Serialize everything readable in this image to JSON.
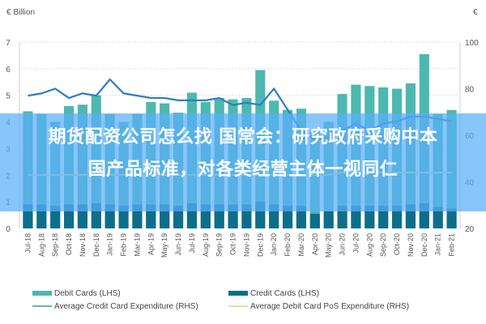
{
  "header": {
    "left_unit": "€ Billion",
    "right_unit": "€"
  },
  "overlay": {
    "title_line1": "期货配资公司怎么找 国常会：研究政府采购中本",
    "title_line2": "国产品标准，对各类经营主体一视同仁"
  },
  "legend": {
    "debit": "Debit Cards (LHS)",
    "credit": "Credit Cards (LHS)",
    "avg_credit": "Average Credit Card Expenditure (RHS)",
    "avg_debit": "Average Debit Card PoS Expenditure (RHS)"
  },
  "colors": {
    "debit": "#4db8b0",
    "credit": "#0d6e8c",
    "avg_credit": "#2a7fc4",
    "avg_debit": "#d6e6a8",
    "grid": "#dddddd",
    "axis_text": "#555555",
    "overlay": "#5aaffa"
  },
  "chart_data": {
    "type": "bar",
    "title": "",
    "xlabel": "",
    "ylabel": "€ Billion",
    "ylabel_right": "€",
    "ylim": [
      0,
      7
    ],
    "ylim_right": [
      20,
      100
    ],
    "yticks": [
      0,
      1,
      2,
      3,
      4,
      5,
      6,
      7
    ],
    "yticks_right": [
      20,
      40,
      60,
      80,
      100
    ],
    "grid": true,
    "legend_position": "bottom",
    "categories": [
      "Jul-18",
      "Aug-18",
      "Sep-18",
      "Oct-18",
      "Nov-18",
      "Dec-18",
      "Jan-19",
      "Feb-19",
      "Mar-19",
      "Apr-19",
      "May-19",
      "Jun-19",
      "Jul-19",
      "Aug-19",
      "Sep-19",
      "Oct-19",
      "Nov-19",
      "Dec-19",
      "Jan-20",
      "Feb-20",
      "Mar-20",
      "Apr-20",
      "May-20",
      "Jun-20",
      "Jul-20",
      "Aug-20",
      "Sep-20",
      "Oct-20",
      "Nov-20",
      "Dec-20",
      "Jan-21",
      "Feb-21"
    ],
    "series": [
      {
        "name": "Debit Cards (LHS)",
        "type": "bar",
        "axis": "left",
        "values": [
          4.4,
          4.3,
          4.0,
          4.6,
          4.65,
          5.0,
          4.3,
          4.0,
          4.3,
          4.75,
          4.7,
          4.35,
          5.1,
          4.75,
          4.9,
          4.85,
          4.9,
          5.95,
          4.8,
          4.45,
          4.5,
          3.7,
          4.0,
          5.05,
          5.4,
          5.35,
          5.3,
          5.25,
          5.45,
          6.55,
          4.3,
          4.45
        ]
      },
      {
        "name": "Credit Cards (LHS)",
        "type": "bar",
        "axis": "left",
        "values": [
          0.9,
          0.9,
          0.85,
          0.9,
          0.9,
          0.95,
          0.9,
          0.85,
          0.9,
          0.9,
          0.9,
          0.85,
          0.95,
          0.9,
          0.9,
          0.9,
          0.9,
          1.0,
          0.9,
          0.85,
          0.85,
          0.55,
          0.65,
          0.85,
          0.85,
          0.85,
          0.85,
          0.85,
          0.9,
          0.95,
          0.8,
          0.75
        ]
      },
      {
        "name": "Average Credit Card Expenditure (RHS)",
        "type": "line",
        "axis": "right",
        "values": [
          77,
          78,
          80,
          76,
          78,
          77,
          84,
          78,
          77,
          76,
          76,
          75,
          75,
          75,
          76,
          73,
          74,
          73,
          80,
          71,
          62,
          58,
          59,
          62,
          65,
          62,
          65,
          66,
          68,
          68,
          67,
          66
        ]
      },
      {
        "name": "Average Debit Card PoS Expenditure (RHS)",
        "type": "line",
        "axis": "right",
        "values": [
          43,
          43,
          43,
          43,
          43,
          43,
          43,
          43,
          43,
          43,
          43,
          43,
          43,
          43,
          43,
          43,
          43,
          43,
          43,
          43,
          43,
          43,
          43,
          44,
          44,
          44,
          44,
          44,
          44,
          44,
          44,
          44
        ]
      }
    ]
  }
}
